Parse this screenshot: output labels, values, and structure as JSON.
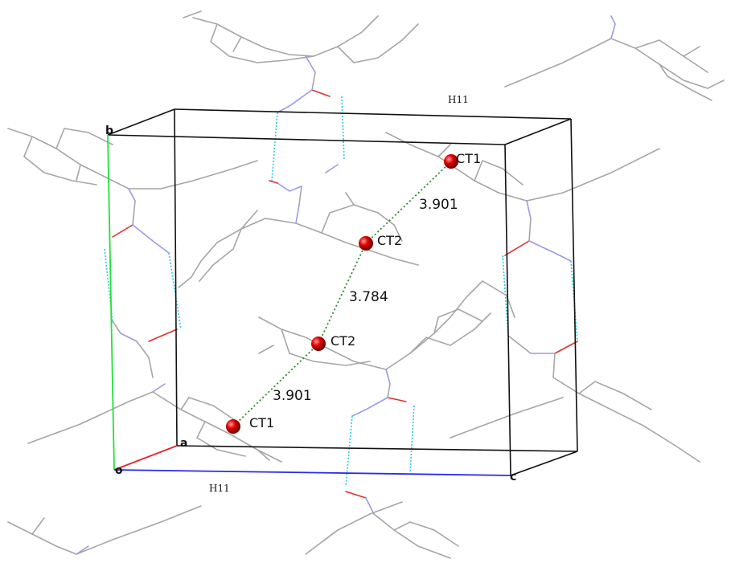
{
  "axes": {
    "a": "a",
    "b": "b",
    "c": "c",
    "origin": "o"
  },
  "hydrogen_labels": {
    "top": "H11",
    "bottom": "H11"
  },
  "centroids": {
    "ct1_upper": "CT1",
    "ct2_upper": "CT2",
    "ct2_lower": "CT2",
    "ct1_lower": "CT1"
  },
  "distances": {
    "upper": "3.901",
    "middle": "3.784",
    "lower": "3.901"
  },
  "colors": {
    "carbon_bond": "#a6a6a6",
    "nitrogen_bond": "#9a9ae8",
    "oxygen_bond": "#e0302a",
    "hydrogen_bond": "#26c8e0",
    "centroid": "#e00000",
    "pi_stack_line": "#2a8a2a",
    "axis_a": "#e8232a",
    "axis_b": "#22e23a",
    "axis_c": "#2a2ae8",
    "cell_edge": "#111111"
  }
}
